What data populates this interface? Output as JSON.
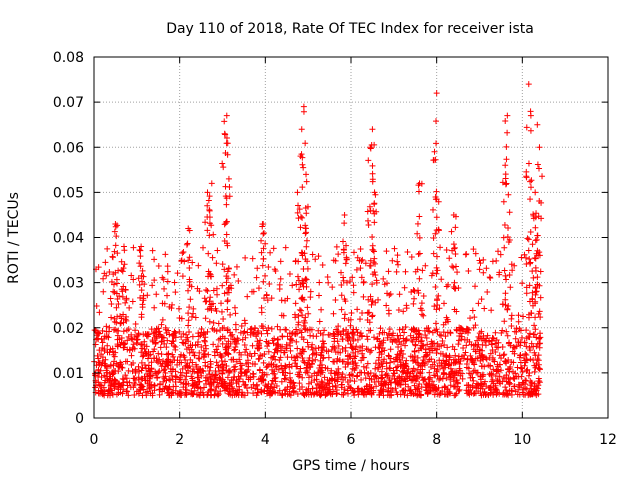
{
  "chart_data": {
    "type": "scatter",
    "title": "Day 110 of 2018, Rate Of TEC Index for receiver ista",
    "xlabel": "GPS time / hours",
    "ylabel": "ROTI / TECUs",
    "xlim": [
      0,
      12
    ],
    "ylim": [
      0,
      0.08
    ],
    "x_ticks": [
      0,
      2,
      4,
      6,
      8,
      10,
      12
    ],
    "x_tick_labels": [
      "0",
      "2",
      "4",
      "6",
      "8",
      "10",
      "12"
    ],
    "y_ticks": [
      0,
      0.01,
      0.02,
      0.03,
      0.04,
      0.05,
      0.06,
      0.07,
      0.08
    ],
    "y_tick_labels": [
      "0",
      "0.01",
      "0.02",
      "0.03",
      "0.04",
      "0.05",
      "0.06",
      "0.07",
      "0.08"
    ],
    "grid": true,
    "marker": "+",
    "series": [
      {
        "name": "ROTI",
        "color": "#ff0000",
        "x_range": [
          0,
          10.42
        ],
        "typical_range": [
          0.005,
          0.02
        ],
        "spikes": [
          {
            "x": 0.5,
            "y": 0.043
          },
          {
            "x": 0.7,
            "y": 0.038
          },
          {
            "x": 1.1,
            "y": 0.038
          },
          {
            "x": 2.2,
            "y": 0.042
          },
          {
            "x": 2.65,
            "y": 0.05
          },
          {
            "x": 2.75,
            "y": 0.052
          },
          {
            "x": 3.1,
            "y": 0.067
          },
          {
            "x": 3.05,
            "y": 0.063
          },
          {
            "x": 3.15,
            "y": 0.053
          },
          {
            "x": 3.95,
            "y": 0.043
          },
          {
            "x": 4.9,
            "y": 0.069
          },
          {
            "x": 4.85,
            "y": 0.064
          },
          {
            "x": 4.95,
            "y": 0.054
          },
          {
            "x": 4.75,
            "y": 0.05
          },
          {
            "x": 5.85,
            "y": 0.045
          },
          {
            "x": 6.5,
            "y": 0.064
          },
          {
            "x": 6.45,
            "y": 0.06
          },
          {
            "x": 6.55,
            "y": 0.05
          },
          {
            "x": 7.6,
            "y": 0.052
          },
          {
            "x": 8.0,
            "y": 0.072
          },
          {
            "x": 7.95,
            "y": 0.059
          },
          {
            "x": 8.4,
            "y": 0.045
          },
          {
            "x": 9.65,
            "y": 0.067
          },
          {
            "x": 9.6,
            "y": 0.056
          },
          {
            "x": 10.15,
            "y": 0.074
          },
          {
            "x": 10.2,
            "y": 0.067
          },
          {
            "x": 10.35,
            "y": 0.065
          },
          {
            "x": 10.4,
            "y": 0.06
          },
          {
            "x": 10.3,
            "y": 0.05
          }
        ]
      }
    ]
  }
}
